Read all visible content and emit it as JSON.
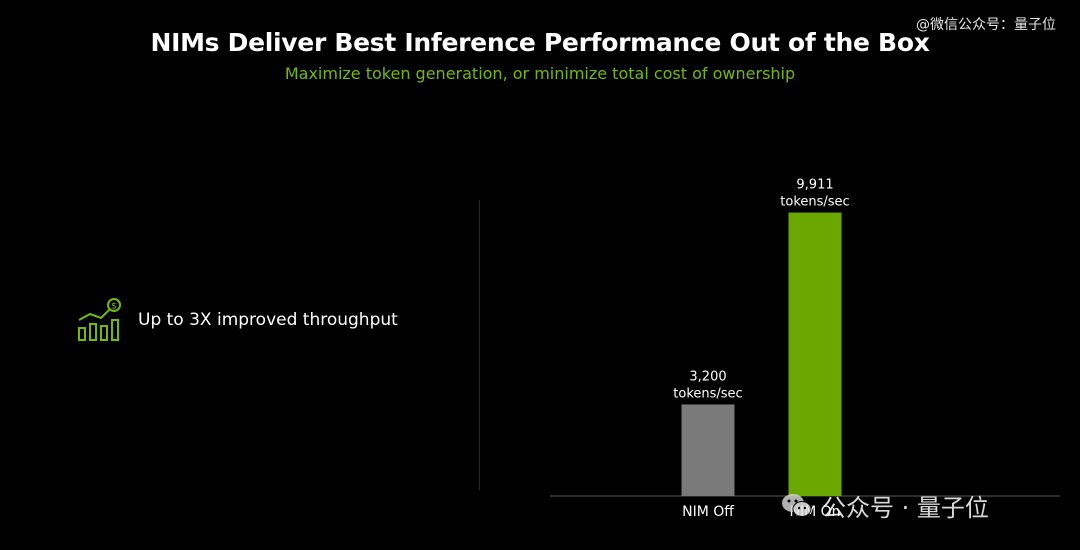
{
  "watermark_top": "@微信公众号：量子位",
  "watermark_bottom": "公众号 · 量子位",
  "title": "NIMs Deliver Best Inference Performance Out of the Box",
  "subtitle": "Maximize token generation, or minimize total cost of ownership",
  "feature": {
    "text": "Up to 3X improved throughput",
    "icon": "growth-chart-dollar-icon"
  },
  "colors": {
    "accent": "#76b900",
    "bar_off": "#7a7a7a",
    "bar_on": "#6aa700"
  },
  "chart_data": {
    "type": "bar",
    "categories": [
      "NIM Off",
      "NIM On"
    ],
    "values": [
      3200,
      9911
    ],
    "data_labels": [
      [
        "3,200",
        "tokens/sec"
      ],
      [
        "9,911",
        "tokens/sec"
      ]
    ],
    "title": "",
    "xlabel": "",
    "ylabel": "",
    "ylim": [
      0,
      10000
    ],
    "grid": false,
    "legend": "none"
  }
}
